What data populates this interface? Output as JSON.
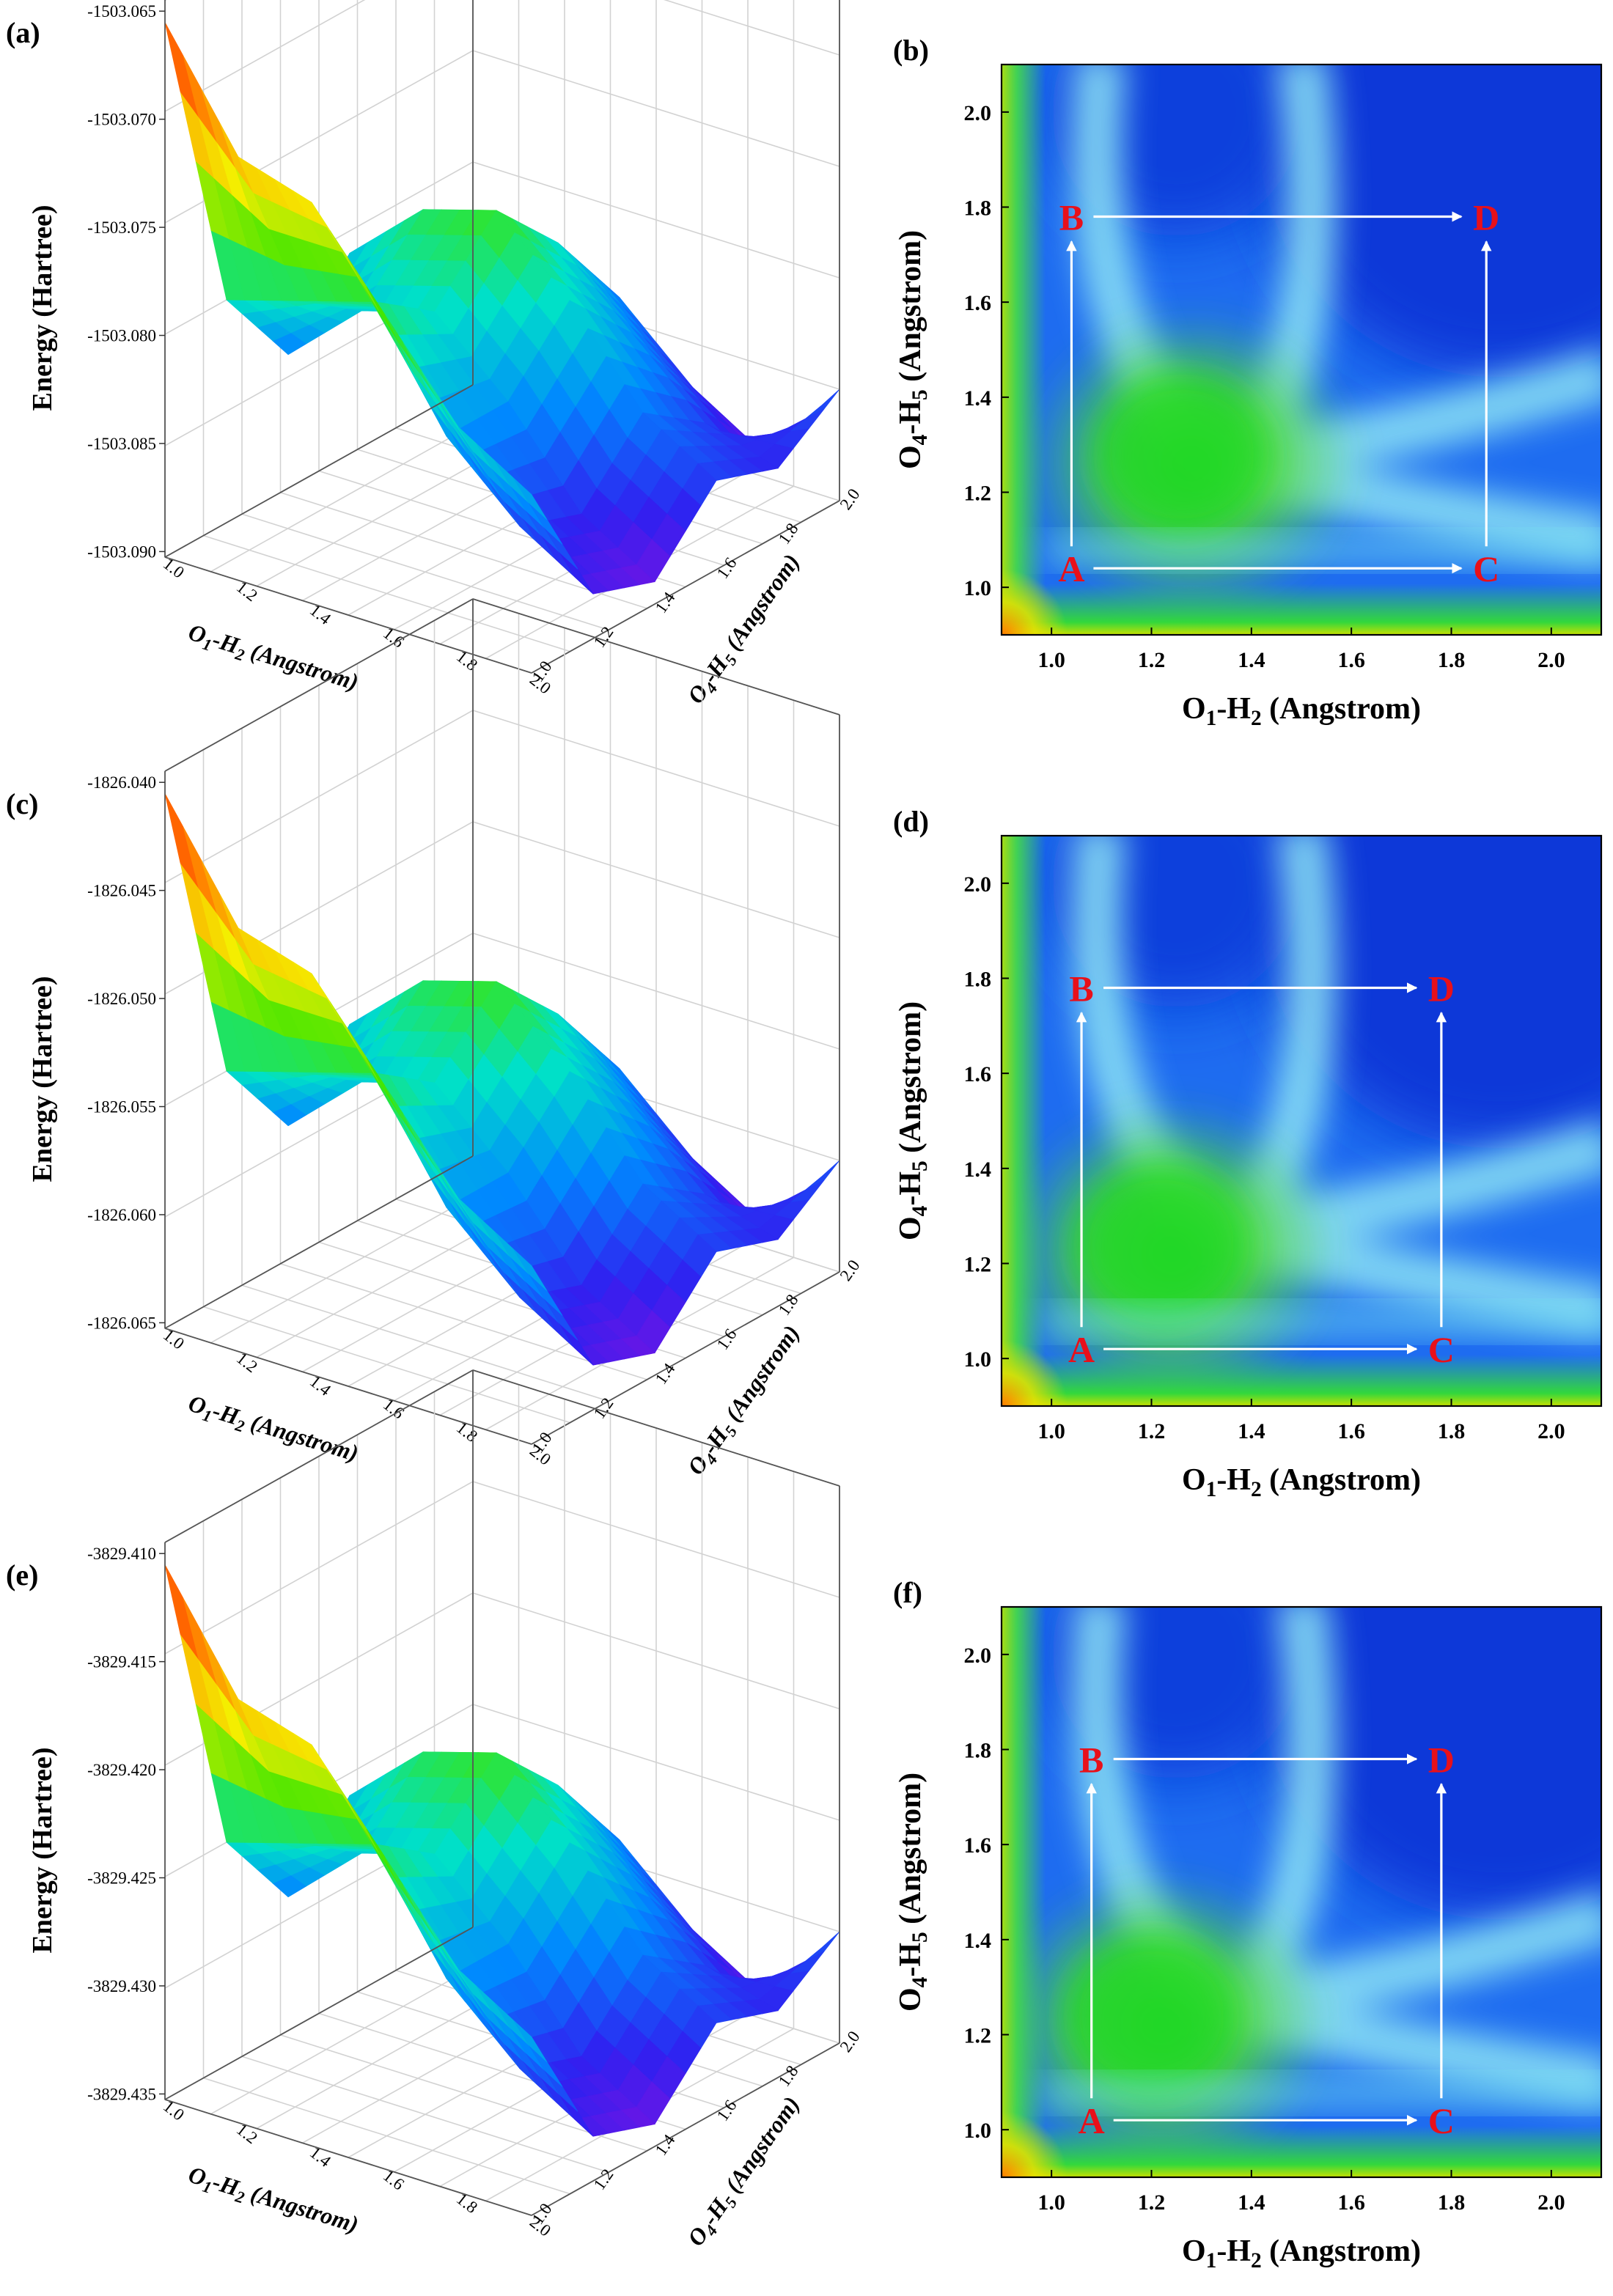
{
  "figure": {
    "rows": [
      {
        "surface": {
          "label": "(a)",
          "z_title": "Energy (Hartree)",
          "z_ticks": [
            "-1503.065",
            "-1503.070",
            "-1503.075",
            "-1503.080",
            "-1503.085",
            "-1503.090"
          ],
          "x_title": "O1-H2 (Angstrom)",
          "x_title_main": "O",
          "x_title_sub1": "1",
          "x_title_mid": "-H",
          "x_title_sub2": "2",
          "x_title_tail": " (Angstrom)",
          "x_ticks": [
            "1.0",
            "1.2",
            "1.4",
            "1.6",
            "1.8",
            "2.0"
          ],
          "y_title": "O4-H5 (Angstrom)",
          "y_title_main": "O",
          "y_title_sub1": "4",
          "y_title_mid": "-H",
          "y_title_sub2": "5",
          "y_title_tail": " (Angstrom)",
          "y_ticks": [
            "1.0",
            "1.2",
            "1.4",
            "1.6",
            "1.8",
            "2.0"
          ]
        },
        "contour": {
          "label": "(b)",
          "x_title_main": "O",
          "x_title_sub1": "1",
          "x_title_mid": "-H",
          "x_title_sub2": "2",
          "x_title_tail": " (Angstrom)",
          "y_title_main": "O",
          "y_title_sub1": "4",
          "y_title_mid": "-H",
          "y_title_sub2": "5",
          "y_title_tail": " (Angstrom)",
          "x_ticks": [
            "1.0",
            "1.2",
            "1.4",
            "1.6",
            "1.8",
            "2.0"
          ],
          "y_ticks": [
            "1.0",
            "1.2",
            "1.4",
            "1.6",
            "1.8",
            "2.0"
          ],
          "points": [
            {
              "name": "A",
              "x": 1.04,
              "y": 1.04
            },
            {
              "name": "B",
              "x": 1.04,
              "y": 1.78
            },
            {
              "name": "C",
              "x": 1.87,
              "y": 1.04
            },
            {
              "name": "D",
              "x": 1.87,
              "y": 1.78
            }
          ]
        }
      },
      {
        "surface": {
          "label": "(c)",
          "z_title": "Energy (Hartree)",
          "z_ticks": [
            "-1826.040",
            "-1826.045",
            "-1826.050",
            "-1826.055",
            "-1826.060",
            "-1826.065"
          ],
          "x_title": "O1-H2 (Angstrom)",
          "x_title_main": "O",
          "x_title_sub1": "1",
          "x_title_mid": "-H",
          "x_title_sub2": "2",
          "x_title_tail": " (Angstrom)",
          "x_ticks": [
            "1.0",
            "1.2",
            "1.4",
            "1.6",
            "1.8",
            "2.0"
          ],
          "y_title": "O4-H5 (Angstrom)",
          "y_title_main": "O",
          "y_title_sub1": "4",
          "y_title_mid": "-H",
          "y_title_sub2": "5",
          "y_title_tail": " (Angstrom)",
          "y_ticks": [
            "1.0",
            "1.2",
            "1.4",
            "1.6",
            "1.8",
            "2.0"
          ]
        },
        "contour": {
          "label": "(d)",
          "x_title_main": "O",
          "x_title_sub1": "1",
          "x_title_mid": "-H",
          "x_title_sub2": "2",
          "x_title_tail": " (Angstrom)",
          "y_title_main": "O",
          "y_title_sub1": "4",
          "y_title_mid": "-H",
          "y_title_sub2": "5",
          "y_title_tail": " (Angstrom)",
          "x_ticks": [
            "1.0",
            "1.2",
            "1.4",
            "1.6",
            "1.8",
            "2.0"
          ],
          "y_ticks": [
            "1.0",
            "1.2",
            "1.4",
            "1.6",
            "1.8",
            "2.0"
          ],
          "points": [
            {
              "name": "A",
              "x": 1.06,
              "y": 1.02
            },
            {
              "name": "B",
              "x": 1.06,
              "y": 1.78
            },
            {
              "name": "C",
              "x": 1.78,
              "y": 1.02
            },
            {
              "name": "D",
              "x": 1.78,
              "y": 1.78
            }
          ]
        }
      },
      {
        "surface": {
          "label": "(e)",
          "z_title": "Energy (Hartree)",
          "z_ticks": [
            "-3829.410",
            "-3829.415",
            "-3829.420",
            "-3829.425",
            "-3829.430",
            "-3829.435"
          ],
          "x_title": "O1-H2 (Angstrom)",
          "x_title_main": "O",
          "x_title_sub1": "1",
          "x_title_mid": "-H",
          "x_title_sub2": "2",
          "x_title_tail": " (Angstrom)",
          "x_ticks": [
            "1.0",
            "1.2",
            "1.4",
            "1.6",
            "1.8",
            "2.0"
          ],
          "y_title": "O4-H5 (Angstrom)",
          "y_title_main": "O",
          "y_title_sub1": "4",
          "y_title_mid": "-H",
          "y_title_sub2": "5",
          "y_title_tail": " (Angstrom)",
          "y_ticks": [
            "1.0",
            "1.2",
            "1.4",
            "1.6",
            "1.8",
            "2.0"
          ]
        },
        "contour": {
          "label": "(f)",
          "x_title_main": "O",
          "x_title_sub1": "1",
          "x_title_mid": "-H",
          "x_title_sub2": "2",
          "x_title_tail": " (Angstrom)",
          "y_title_main": "O",
          "y_title_sub1": "4",
          "y_title_mid": "-H",
          "y_title_sub2": "5",
          "y_title_tail": " (Angstrom)",
          "x_ticks": [
            "1.0",
            "1.2",
            "1.4",
            "1.6",
            "1.8",
            "2.0"
          ],
          "y_ticks": [
            "1.0",
            "1.2",
            "1.4",
            "1.6",
            "1.8",
            "2.0"
          ],
          "points": [
            {
              "name": "A",
              "x": 1.08,
              "y": 1.02
            },
            {
              "name": "B",
              "x": 1.08,
              "y": 1.78
            },
            {
              "name": "C",
              "x": 1.78,
              "y": 1.02
            },
            {
              "name": "D",
              "x": 1.78,
              "y": 1.78
            }
          ]
        }
      }
    ]
  },
  "chart_data": [
    {
      "type": "surface3d",
      "panel": "(a)",
      "xlabel": "O1-H2 (Angstrom)",
      "ylabel": "O4-H5 (Angstrom)",
      "zlabel": "Energy (Hartree)",
      "xlim": [
        1.0,
        2.0
      ],
      "ylim": [
        1.0,
        2.0
      ],
      "zlim": [
        -1503.09,
        -1503.065
      ],
      "x": [
        1.0,
        1.2,
        1.4,
        1.6,
        1.8,
        2.0
      ],
      "y": [
        1.0,
        1.2,
        1.4,
        1.6,
        1.8,
        2.0
      ],
      "z": [
        [
          -1503.066,
          -1503.08,
          -1503.084,
          -1503.081,
          -1503.083,
          -1503.086
        ],
        [
          -1503.071,
          -1503.079,
          -1503.081,
          -1503.078,
          -1503.081,
          -1503.085
        ],
        [
          -1503.072,
          -1503.078,
          -1503.08,
          -1503.077,
          -1503.08,
          -1503.084
        ],
        [
          -1503.076,
          -1503.083,
          -1503.083,
          -1503.08,
          -1503.083,
          -1503.087
        ],
        [
          -1503.08,
          -1503.086,
          -1503.087,
          -1503.084,
          -1503.086,
          -1503.089
        ],
        [
          -1503.082,
          -1503.088,
          -1503.089,
          -1503.086,
          -1503.087,
          -1503.085
        ]
      ]
    },
    {
      "type": "heatmap",
      "panel": "(b)",
      "xlabel": "O1-H2 (Angstrom)",
      "ylabel": "O4-H5 (Angstrom)",
      "xlim": [
        0.9,
        2.1
      ],
      "ylim": [
        0.9,
        2.1
      ],
      "xticks": [
        1.0,
        1.2,
        1.4,
        1.6,
        1.8,
        2.0
      ],
      "yticks": [
        1.0,
        1.2,
        1.4,
        1.6,
        1.8,
        2.0
      ],
      "points": [
        {
          "name": "A",
          "x": 1.04,
          "y": 1.04
        },
        {
          "name": "B",
          "x": 1.04,
          "y": 1.78
        },
        {
          "name": "C",
          "x": 1.87,
          "y": 1.04
        },
        {
          "name": "D",
          "x": 1.87,
          "y": 1.78
        }
      ],
      "arrows": [
        [
          "A",
          "B"
        ],
        [
          "A",
          "C"
        ],
        [
          "B",
          "D"
        ],
        [
          "C",
          "D"
        ]
      ],
      "saddle": {
        "x": 1.28,
        "y": 1.26
      }
    },
    {
      "type": "surface3d",
      "panel": "(c)",
      "xlabel": "O1-H2 (Angstrom)",
      "ylabel": "O4-H5 (Angstrom)",
      "zlabel": "Energy (Hartree)",
      "xlim": [
        1.0,
        2.0
      ],
      "ylim": [
        1.0,
        2.0
      ],
      "zlim": [
        -1826.065,
        -1826.04
      ],
      "x": [
        1.0,
        1.2,
        1.4,
        1.6,
        1.8,
        2.0
      ],
      "y": [
        1.0,
        1.2,
        1.4,
        1.6,
        1.8,
        2.0
      ],
      "z": [
        [
          -1826.041,
          -1826.055,
          -1826.059,
          -1826.056,
          -1826.058,
          -1826.061
        ],
        [
          -1826.046,
          -1826.054,
          -1826.056,
          -1826.053,
          -1826.056,
          -1826.06
        ],
        [
          -1826.047,
          -1826.053,
          -1826.055,
          -1826.052,
          -1826.055,
          -1826.059
        ],
        [
          -1826.051,
          -1826.058,
          -1826.058,
          -1826.055,
          -1826.058,
          -1826.062
        ],
        [
          -1826.055,
          -1826.061,
          -1826.062,
          -1826.059,
          -1826.061,
          -1826.064
        ],
        [
          -1826.057,
          -1826.063,
          -1826.064,
          -1826.061,
          -1826.062,
          -1826.06
        ]
      ]
    },
    {
      "type": "heatmap",
      "panel": "(d)",
      "xlabel": "O1-H2 (Angstrom)",
      "ylabel": "O4-H5 (Angstrom)",
      "xlim": [
        0.9,
        2.1
      ],
      "ylim": [
        0.9,
        2.1
      ],
      "xticks": [
        1.0,
        1.2,
        1.4,
        1.6,
        1.8,
        2.0
      ],
      "yticks": [
        1.0,
        1.2,
        1.4,
        1.6,
        1.8,
        2.0
      ],
      "points": [
        {
          "name": "A",
          "x": 1.06,
          "y": 1.02
        },
        {
          "name": "B",
          "x": 1.06,
          "y": 1.78
        },
        {
          "name": "C",
          "x": 1.78,
          "y": 1.02
        },
        {
          "name": "D",
          "x": 1.78,
          "y": 1.78
        }
      ],
      "arrows": [
        [
          "A",
          "B"
        ],
        [
          "A",
          "C"
        ],
        [
          "B",
          "D"
        ],
        [
          "C",
          "D"
        ]
      ],
      "saddle": {
        "x": 1.24,
        "y": 1.22
      }
    },
    {
      "type": "surface3d",
      "panel": "(e)",
      "xlabel": "O1-H2 (Angstrom)",
      "ylabel": "O4-H5 (Angstrom)",
      "zlabel": "Energy (Hartree)",
      "xlim": [
        1.0,
        2.0
      ],
      "ylim": [
        1.0,
        2.0
      ],
      "zlim": [
        -3829.435,
        -3829.41
      ],
      "x": [
        1.0,
        1.2,
        1.4,
        1.6,
        1.8,
        2.0
      ],
      "y": [
        1.0,
        1.2,
        1.4,
        1.6,
        1.8,
        2.0
      ],
      "z": [
        [
          -3829.411,
          -3829.425,
          -3829.429,
          -3829.426,
          -3829.428,
          -3829.431
        ],
        [
          -3829.416,
          -3829.424,
          -3829.426,
          -3829.423,
          -3829.426,
          -3829.43
        ],
        [
          -3829.417,
          -3829.423,
          -3829.425,
          -3829.422,
          -3829.425,
          -3829.429
        ],
        [
          -3829.421,
          -3829.428,
          -3829.428,
          -3829.425,
          -3829.428,
          -3829.432
        ],
        [
          -3829.425,
          -3829.431,
          -3829.432,
          -3829.429,
          -3829.431,
          -3829.434
        ],
        [
          -3829.427,
          -3829.433,
          -3829.434,
          -3829.431,
          -3829.432,
          -3829.43
        ]
      ]
    },
    {
      "type": "heatmap",
      "panel": "(f)",
      "xlabel": "O1-H2 (Angstrom)",
      "ylabel": "O4-H5 (Angstrom)",
      "xlim": [
        0.9,
        2.1
      ],
      "ylim": [
        0.9,
        2.1
      ],
      "xticks": [
        1.0,
        1.2,
        1.4,
        1.6,
        1.8,
        2.0
      ],
      "yticks": [
        1.0,
        1.2,
        1.4,
        1.6,
        1.8,
        2.0
      ],
      "points": [
        {
          "name": "A",
          "x": 1.08,
          "y": 1.02
        },
        {
          "name": "B",
          "x": 1.08,
          "y": 1.78
        },
        {
          "name": "C",
          "x": 1.78,
          "y": 1.02
        },
        {
          "name": "D",
          "x": 1.78,
          "y": 1.78
        }
      ],
      "arrows": [
        [
          "A",
          "B"
        ],
        [
          "A",
          "C"
        ],
        [
          "B",
          "D"
        ],
        [
          "C",
          "D"
        ]
      ],
      "saddle": {
        "x": 1.22,
        "y": 1.22
      }
    }
  ]
}
